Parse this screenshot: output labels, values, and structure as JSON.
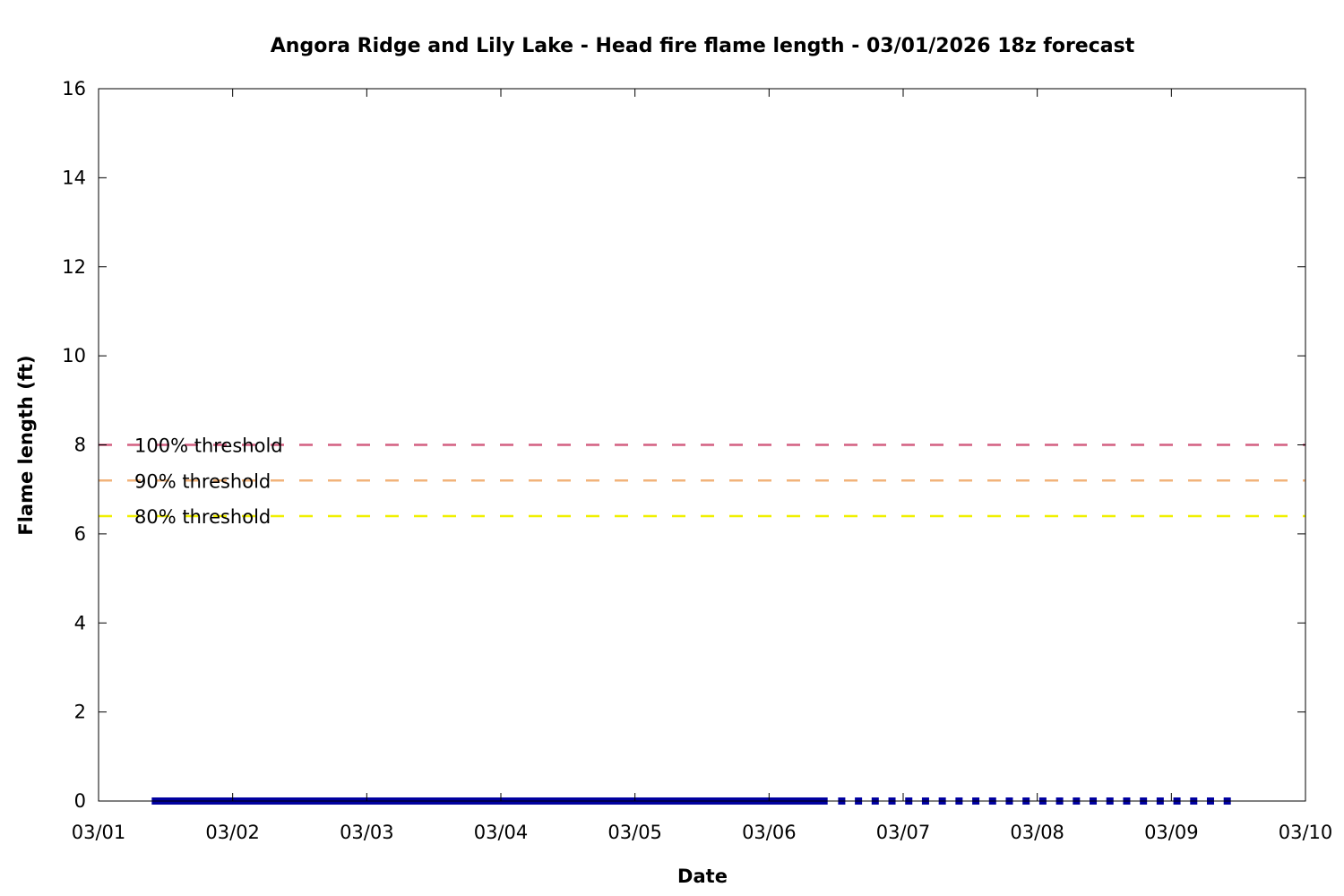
{
  "chart_data": {
    "type": "line",
    "title": "Angora Ridge and Lily Lake - Head fire flame length - 03/01/2026 18z forecast",
    "xlabel": "Date",
    "ylabel": "Flame length (ft)",
    "x_ticks": [
      "03/01",
      "03/02",
      "03/03",
      "03/04",
      "03/05",
      "03/06",
      "03/07",
      "03/08",
      "03/09",
      "03/10"
    ],
    "y_ticks": [
      "0",
      "2",
      "4",
      "6",
      "8",
      "10",
      "12",
      "14",
      "16"
    ],
    "xlim": [
      "03/01 00:00",
      "03/10 00:00"
    ],
    "ylim": [
      0,
      16
    ],
    "grid": false,
    "series": [
      {
        "role": "observed",
        "style": "solid",
        "color": "#0000a0",
        "x_start": "03/01 10:00",
        "x_end": "03/06 10:00",
        "interval_hours": 1,
        "y": 0
      },
      {
        "role": "forecast",
        "style": "dotted",
        "color": "#0000a0",
        "x_start": "03/06 13:00",
        "x_end": "03/09 10:00",
        "interval_hours": 3,
        "y": 0
      }
    ],
    "thresholds": [
      {
        "name": "100% threshold",
        "value": 8.0,
        "color": "#d35f80"
      },
      {
        "name": "90% threshold",
        "value": 7.2,
        "color": "#f2b37a"
      },
      {
        "name": "80% threshold",
        "value": 6.4,
        "color": "#f0f000"
      }
    ]
  }
}
